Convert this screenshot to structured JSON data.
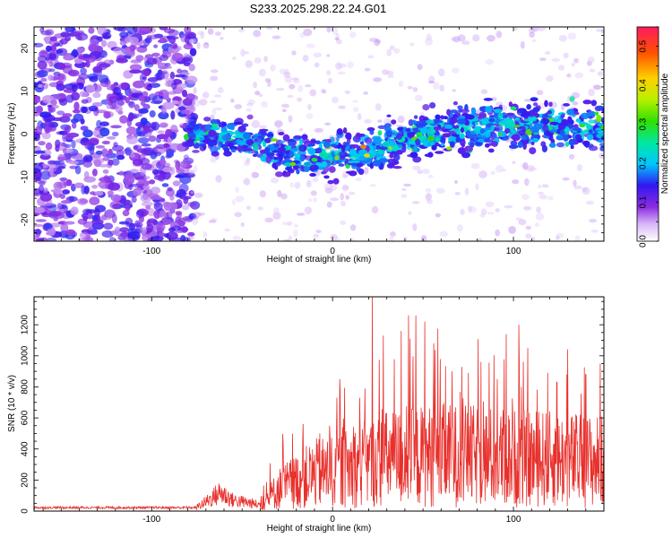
{
  "title": "S233.2025.298.22.24.G01",
  "chart_data": [
    {
      "type": "heatmap",
      "xlabel": "Height of straight line (km)",
      "ylabel": "Frequency (Hz)",
      "xlim": [
        -165,
        150
      ],
      "ylim": [
        -25,
        25
      ],
      "xticks": [
        -100,
        0,
        100
      ],
      "yticks": [
        -20,
        -10,
        0,
        10,
        20
      ],
      "colorbar": {
        "label": "Normalized spectral amplitude",
        "range": [
          0,
          0.55
        ],
        "ticks": [
          0.0,
          0.1,
          0.2,
          0.3,
          0.4,
          0.5
        ],
        "tick_labels": [
          "0.0",
          "0.1",
          "0.2",
          "0.3",
          "0.4",
          "0.5"
        ]
      },
      "signal_band": [
        {
          "x": -75,
          "center": 0,
          "width": 5
        },
        {
          "x": -50,
          "center": -1,
          "width": 6
        },
        {
          "x": -25,
          "center": -5,
          "width": 7
        },
        {
          "x": 0,
          "center": -5,
          "width": 7
        },
        {
          "x": 20,
          "center": -4,
          "width": 7
        },
        {
          "x": 50,
          "center": 0,
          "width": 8
        },
        {
          "x": 75,
          "center": 2,
          "width": 8
        },
        {
          "x": 100,
          "center": 2,
          "width": 8
        },
        {
          "x": 125,
          "center": 2,
          "width": 8
        },
        {
          "x": 150,
          "center": 1,
          "width": 8
        }
      ],
      "noise_region_x": [
        -165,
        -80
      ]
    },
    {
      "type": "line",
      "xlabel": "Height of straight line (km)",
      "ylabel": "SNR (10 * v/v)",
      "xlim": [
        -165,
        150
      ],
      "ylim": [
        0,
        1380
      ],
      "xticks": [
        -100,
        0,
        100
      ],
      "yticks": [
        0,
        200,
        400,
        600,
        800,
        1000,
        1200
      ],
      "color": "#e8302c",
      "envelope": [
        {
          "x": -165,
          "level": 25
        },
        {
          "x": -75,
          "level": 25
        },
        {
          "x": -70,
          "level": 60
        },
        {
          "x": -62,
          "level": 120
        },
        {
          "x": -55,
          "level": 70
        },
        {
          "x": -40,
          "level": 40
        },
        {
          "x": -30,
          "level": 180
        },
        {
          "x": -10,
          "level": 300
        },
        {
          "x": 10,
          "level": 350
        },
        {
          "x": 30,
          "level": 420
        },
        {
          "x": 60,
          "level": 450
        },
        {
          "x": 100,
          "level": 430
        },
        {
          "x": 150,
          "level": 400
        }
      ],
      "peaks": [
        {
          "x": -7,
          "y": 500
        },
        {
          "x": 4,
          "y": 850
        },
        {
          "x": 15,
          "y": 730
        },
        {
          "x": 22,
          "y": 1380
        },
        {
          "x": 28,
          "y": 1130
        },
        {
          "x": 38,
          "y": 1160
        },
        {
          "x": 42,
          "y": 1260
        },
        {
          "x": 46,
          "y": 1260
        },
        {
          "x": 51,
          "y": 1220
        },
        {
          "x": 56,
          "y": 1080
        },
        {
          "x": 66,
          "y": 900
        },
        {
          "x": 75,
          "y": 890
        },
        {
          "x": 82,
          "y": 960
        },
        {
          "x": 96,
          "y": 1140
        },
        {
          "x": 103,
          "y": 1200
        },
        {
          "x": 108,
          "y": 1050
        },
        {
          "x": 119,
          "y": 890
        },
        {
          "x": 124,
          "y": 830
        },
        {
          "x": 140,
          "y": 880
        },
        {
          "x": 148,
          "y": 950
        }
      ]
    }
  ]
}
